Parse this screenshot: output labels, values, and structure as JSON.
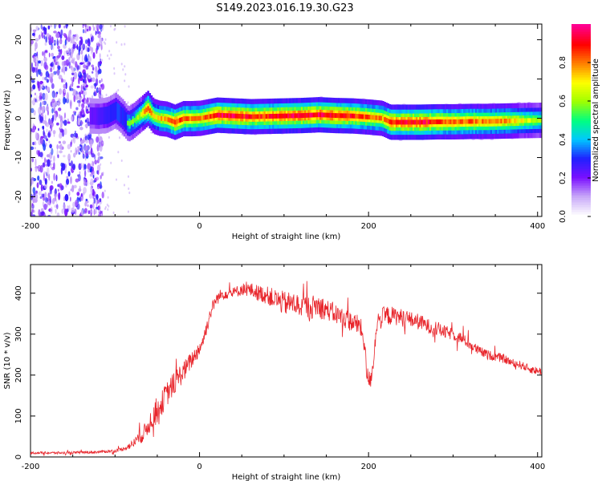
{
  "title": "S149.2023.016.19.30.G23",
  "chart_data": [
    {
      "type": "heatmap",
      "title": "S149.2023.016.19.30.G23",
      "xlabel": "Height of straight line (km)",
      "ylabel": "Frequency (Hz)",
      "xlim": [
        -200,
        405
      ],
      "ylim": [
        -25,
        24
      ],
      "xticks": [
        -200,
        0,
        200,
        400
      ],
      "yticks": [
        -20,
        -10,
        0,
        10,
        20
      ],
      "colorbar": {
        "label": "Normalized spectral amplitude",
        "range": [
          0,
          1
        ],
        "ticks": [
          "0.0",
          "0.2",
          "0.4",
          "0.6",
          "0.8"
        ],
        "tick_values": [
          0.0,
          0.2,
          0.4,
          0.6,
          0.8
        ],
        "colors": [
          "#ffffff",
          "#c8a8f8",
          "#7a10ff",
          "#2020ff",
          "#00c8ff",
          "#00ff80",
          "#a0ff00",
          "#ffff00",
          "#ff8000",
          "#ff0000",
          "#ff0090"
        ]
      },
      "noise_region_x": [
        -200,
        -120
      ],
      "ridge": {
        "x": [
          -130,
          -120,
          -110,
          -100,
          -92,
          -85,
          -78,
          -70,
          -62,
          -55,
          -48,
          -40,
          -30,
          -20,
          -10,
          0,
          20,
          40,
          60,
          80,
          100,
          120,
          140,
          160,
          180,
          200,
          215,
          225,
          240,
          260,
          280,
          300,
          320,
          340,
          360,
          380,
          405
        ],
        "y": [
          0.6,
          0.5,
          0.8,
          2.0,
          0.4,
          -1.5,
          -0.5,
          1.0,
          2.5,
          0.5,
          0.0,
          -0.2,
          -1.0,
          -0.1,
          -0.1,
          0.0,
          0.8,
          0.6,
          0.4,
          0.5,
          0.6,
          0.7,
          0.9,
          0.7,
          0.6,
          0.3,
          0.0,
          -1.0,
          -1.0,
          -1.0,
          -0.9,
          -0.9,
          -0.8,
          -0.8,
          -0.7,
          -0.6,
          -0.5
        ],
        "amplitude": [
          0.35,
          0.4,
          0.45,
          0.5,
          0.5,
          0.55,
          0.6,
          0.65,
          0.9,
          0.7,
          0.75,
          0.8,
          0.9,
          0.85,
          0.85,
          0.8,
          0.95,
          0.95,
          0.9,
          0.9,
          0.95,
          0.95,
          0.95,
          0.95,
          0.9,
          0.85,
          0.8,
          0.9,
          0.95,
          0.95,
          0.9,
          0.85,
          0.85,
          0.8,
          0.8,
          0.7,
          0.6
        ]
      },
      "grid": false
    },
    {
      "type": "line",
      "xlabel": "Height of straight line (km)",
      "ylabel": "SNR (10 * v/v)",
      "xlim": [
        -200,
        405
      ],
      "ylim": [
        0,
        470
      ],
      "xticks": [
        -200,
        0,
        200,
        400
      ],
      "yticks": [
        0,
        100,
        200,
        300,
        400
      ],
      "series": [
        {
          "color": "#e8252b",
          "x": [
            -200,
            -160,
            -120,
            -100,
            -90,
            -80,
            -75,
            -70,
            -65,
            -60,
            -55,
            -50,
            -45,
            -40,
            -35,
            -30,
            -25,
            -20,
            -15,
            -10,
            -5,
            0,
            5,
            10,
            15,
            20,
            25,
            30,
            40,
            50,
            60,
            70,
            80,
            90,
            100,
            110,
            120,
            130,
            140,
            150,
            160,
            170,
            180,
            190,
            195,
            198,
            202,
            205,
            210,
            220,
            230,
            240,
            250,
            260,
            270,
            280,
            290,
            300,
            310,
            320,
            330,
            340,
            350,
            360,
            370,
            380,
            390,
            400,
            405
          ],
          "values": [
            10,
            10,
            12,
            15,
            20,
            30,
            40,
            50,
            60,
            80,
            100,
            110,
            130,
            150,
            165,
            180,
            195,
            205,
            220,
            235,
            250,
            265,
            290,
            330,
            365,
            385,
            395,
            400,
            400,
            410,
            408,
            400,
            395,
            385,
            375,
            375,
            370,
            365,
            370,
            360,
            350,
            340,
            330,
            320,
            280,
            200,
            185,
            220,
            330,
            345,
            345,
            340,
            335,
            330,
            320,
            315,
            305,
            300,
            290,
            275,
            260,
            250,
            245,
            240,
            230,
            225,
            215,
            210,
            210
          ],
          "noise": [
            3,
            3,
            3,
            4,
            5,
            10,
            15,
            18,
            22,
            25,
            28,
            30,
            30,
            30,
            30,
            28,
            28,
            26,
            24,
            22,
            20,
            20,
            18,
            18,
            15,
            15,
            15,
            14,
            14,
            15,
            18,
            20,
            22,
            25,
            30,
            28,
            28,
            28,
            30,
            26,
            25,
            25,
            25,
            25,
            25,
            25,
            22,
            22,
            25,
            25,
            22,
            22,
            20,
            20,
            18,
            18,
            16,
            15,
            14,
            13,
            12,
            12,
            11,
            11,
            10,
            10,
            10,
            10,
            10
          ]
        }
      ],
      "grid": false
    }
  ]
}
